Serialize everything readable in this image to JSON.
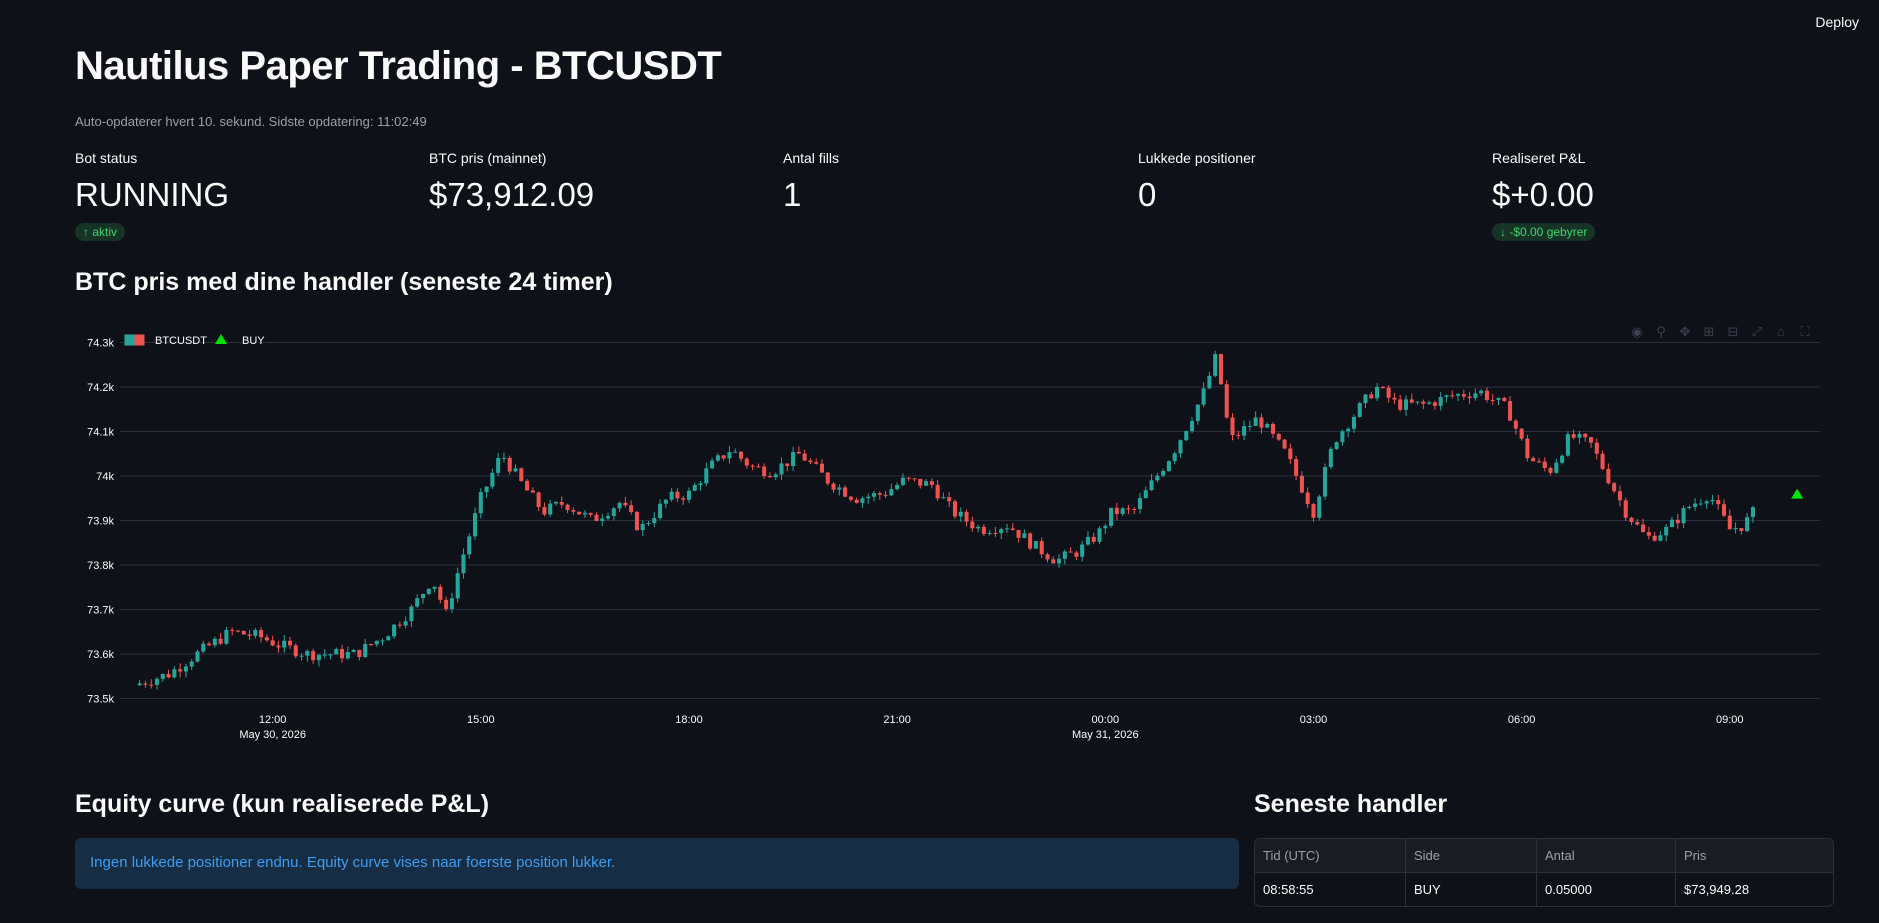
{
  "app": {
    "deploy_label": "Deploy"
  },
  "header": {
    "title": "Nautilus Paper Trading - BTCUSDT",
    "subtitle": "Auto-opdaterer hvert 10. sekund. Sidste opdatering: 11:02:49"
  },
  "metrics": [
    {
      "label": "Bot status",
      "value": "RUNNING",
      "delta": "↑ aktiv"
    },
    {
      "label": "BTC pris (mainnet)",
      "value": "$73,912.09",
      "delta": ""
    },
    {
      "label": "Antal fills",
      "value": "1",
      "delta": ""
    },
    {
      "label": "Lukkede positioner",
      "value": "0",
      "delta": ""
    },
    {
      "label": "Realiseret P&L",
      "value": "$+0.00",
      "delta": "↓ -$0.00 gebyrer"
    }
  ],
  "chart_section": {
    "title": "BTC pris med dine handler (seneste 24 timer)"
  },
  "colors": {
    "up": "#26a69a",
    "down": "#ef5350",
    "buy_marker": "#00e600",
    "info": "#3d9df3"
  },
  "chart_data": {
    "type": "candlestick",
    "legend": [
      {
        "name": "BTCUSDT"
      },
      {
        "name": "BUY"
      }
    ],
    "legend_position": "top-left",
    "grid": true,
    "y_ticks": [
      "73.5k",
      "73.6k",
      "73.7k",
      "73.8k",
      "73.9k",
      "74k",
      "74.1k",
      "74.2k",
      "74.3k"
    ],
    "y_tick_values": [
      73500,
      73600,
      73700,
      73800,
      73900,
      74000,
      74100,
      74200,
      74300
    ],
    "ylim": [
      73490,
      74310
    ],
    "x_range_hours": [
      9.8,
      34.3
    ],
    "x_ticks": [
      {
        "hour": 12,
        "label": "12:00",
        "date": "May 30, 2026"
      },
      {
        "hour": 15,
        "label": "15:00",
        "date": ""
      },
      {
        "hour": 18,
        "label": "18:00",
        "date": ""
      },
      {
        "hour": 21,
        "label": "21:00",
        "date": ""
      },
      {
        "hour": 24,
        "label": "00:00",
        "date": "May 31, 2026"
      },
      {
        "hour": 27,
        "label": "03:00",
        "date": ""
      },
      {
        "hour": 30,
        "label": "06:00",
        "date": ""
      },
      {
        "hour": 33,
        "label": "09:00",
        "date": ""
      }
    ],
    "close_path": [
      [
        10.0,
        73530
      ],
      [
        10.5,
        73555
      ],
      [
        11.0,
        73610
      ],
      [
        11.4,
        73650
      ],
      [
        11.8,
        73640
      ],
      [
        12.1,
        73620
      ],
      [
        12.5,
        73600
      ],
      [
        12.9,
        73600
      ],
      [
        13.2,
        73600
      ],
      [
        13.6,
        73640
      ],
      [
        14.0,
        73700
      ],
      [
        14.3,
        73770
      ],
      [
        14.5,
        73690
      ],
      [
        14.7,
        73800
      ],
      [
        15.0,
        73950
      ],
      [
        15.3,
        74050
      ],
      [
        15.6,
        73980
      ],
      [
        15.9,
        73920
      ],
      [
        16.2,
        73940
      ],
      [
        16.6,
        73900
      ],
      [
        17.0,
        73940
      ],
      [
        17.3,
        73880
      ],
      [
        17.7,
        73950
      ],
      [
        18.0,
        73960
      ],
      [
        18.3,
        74020
      ],
      [
        18.6,
        74060
      ],
      [
        18.9,
        74020
      ],
      [
        19.2,
        74010
      ],
      [
        19.6,
        74050
      ],
      [
        20.0,
        73990
      ],
      [
        20.4,
        73950
      ],
      [
        20.8,
        73960
      ],
      [
        21.1,
        73990
      ],
      [
        21.5,
        73980
      ],
      [
        21.8,
        73920
      ],
      [
        22.2,
        73880
      ],
      [
        22.6,
        73890
      ],
      [
        23.0,
        73840
      ],
      [
        23.3,
        73810
      ],
      [
        23.6,
        73830
      ],
      [
        23.9,
        73870
      ],
      [
        24.1,
        73920
      ],
      [
        24.4,
        73920
      ],
      [
        24.7,
        73990
      ],
      [
        25.0,
        74060
      ],
      [
        25.4,
        74180
      ],
      [
        25.6,
        74270
      ],
      [
        25.8,
        74080
      ],
      [
        26.2,
        74130
      ],
      [
        26.6,
        74050
      ],
      [
        27.0,
        73920
      ],
      [
        27.3,
        74080
      ],
      [
        27.6,
        74140
      ],
      [
        27.9,
        74200
      ],
      [
        28.2,
        74160
      ],
      [
        28.6,
        74160
      ],
      [
        29.0,
        74180
      ],
      [
        29.4,
        74190
      ],
      [
        29.8,
        74150
      ],
      [
        30.1,
        74040
      ],
      [
        30.4,
        74010
      ],
      [
        30.7,
        74090
      ],
      [
        31.0,
        74070
      ],
      [
        31.3,
        73980
      ],
      [
        31.5,
        73920
      ],
      [
        31.8,
        73860
      ],
      [
        32.1,
        73880
      ],
      [
        32.4,
        73930
      ],
      [
        32.7,
        73960
      ],
      [
        33.0,
        73880
      ],
      [
        33.2,
        73890
      ],
      [
        33.4,
        73930
      ]
    ],
    "buy_marker": {
      "hour": 33.97,
      "price": 73949.28
    }
  },
  "equity_section": {
    "title": "Equity curve (kun realiserede P&L)",
    "info": "Ingen lukkede positioner endnu. Equity curve vises naar foerste position lukker."
  },
  "trades_section": {
    "title": "Seneste handler",
    "columns": [
      "Tid (UTC)",
      "Side",
      "Antal",
      "Pris"
    ],
    "rows": [
      [
        "08:58:55",
        "BUY",
        "0.05000",
        "$73,949.28"
      ]
    ]
  }
}
